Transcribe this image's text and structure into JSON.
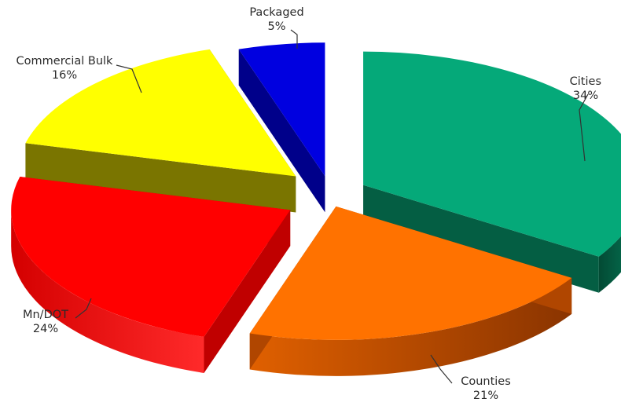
{
  "chart_data": {
    "type": "pie",
    "title": "",
    "exploded": true,
    "three_d": true,
    "start_direction": "top",
    "slices": [
      {
        "name": "Cities",
        "value": 34,
        "label": "Cities",
        "pct_label": "34%",
        "color": "#05a979",
        "side_color": "#045e43"
      },
      {
        "name": "Counties",
        "value": 21,
        "label": "Counties",
        "pct_label": "21%",
        "color": "#ff7200",
        "side_color": "#b04600"
      },
      {
        "name": "Mn/DOT",
        "value": 24,
        "label": "Mn/DOT",
        "pct_label": "24%",
        "color": "#ff0000",
        "side_color": "#c00000"
      },
      {
        "name": "Commercial Bulk",
        "value": 16,
        "label": "Commercial Bulk",
        "pct_label": "16%",
        "color": "#ffff00",
        "side_color": "#7a7500"
      },
      {
        "name": "Packaged",
        "value": 5,
        "label": "Packaged",
        "pct_label": "5%",
        "color": "#0000e0",
        "side_color": "#00008a"
      }
    ]
  }
}
